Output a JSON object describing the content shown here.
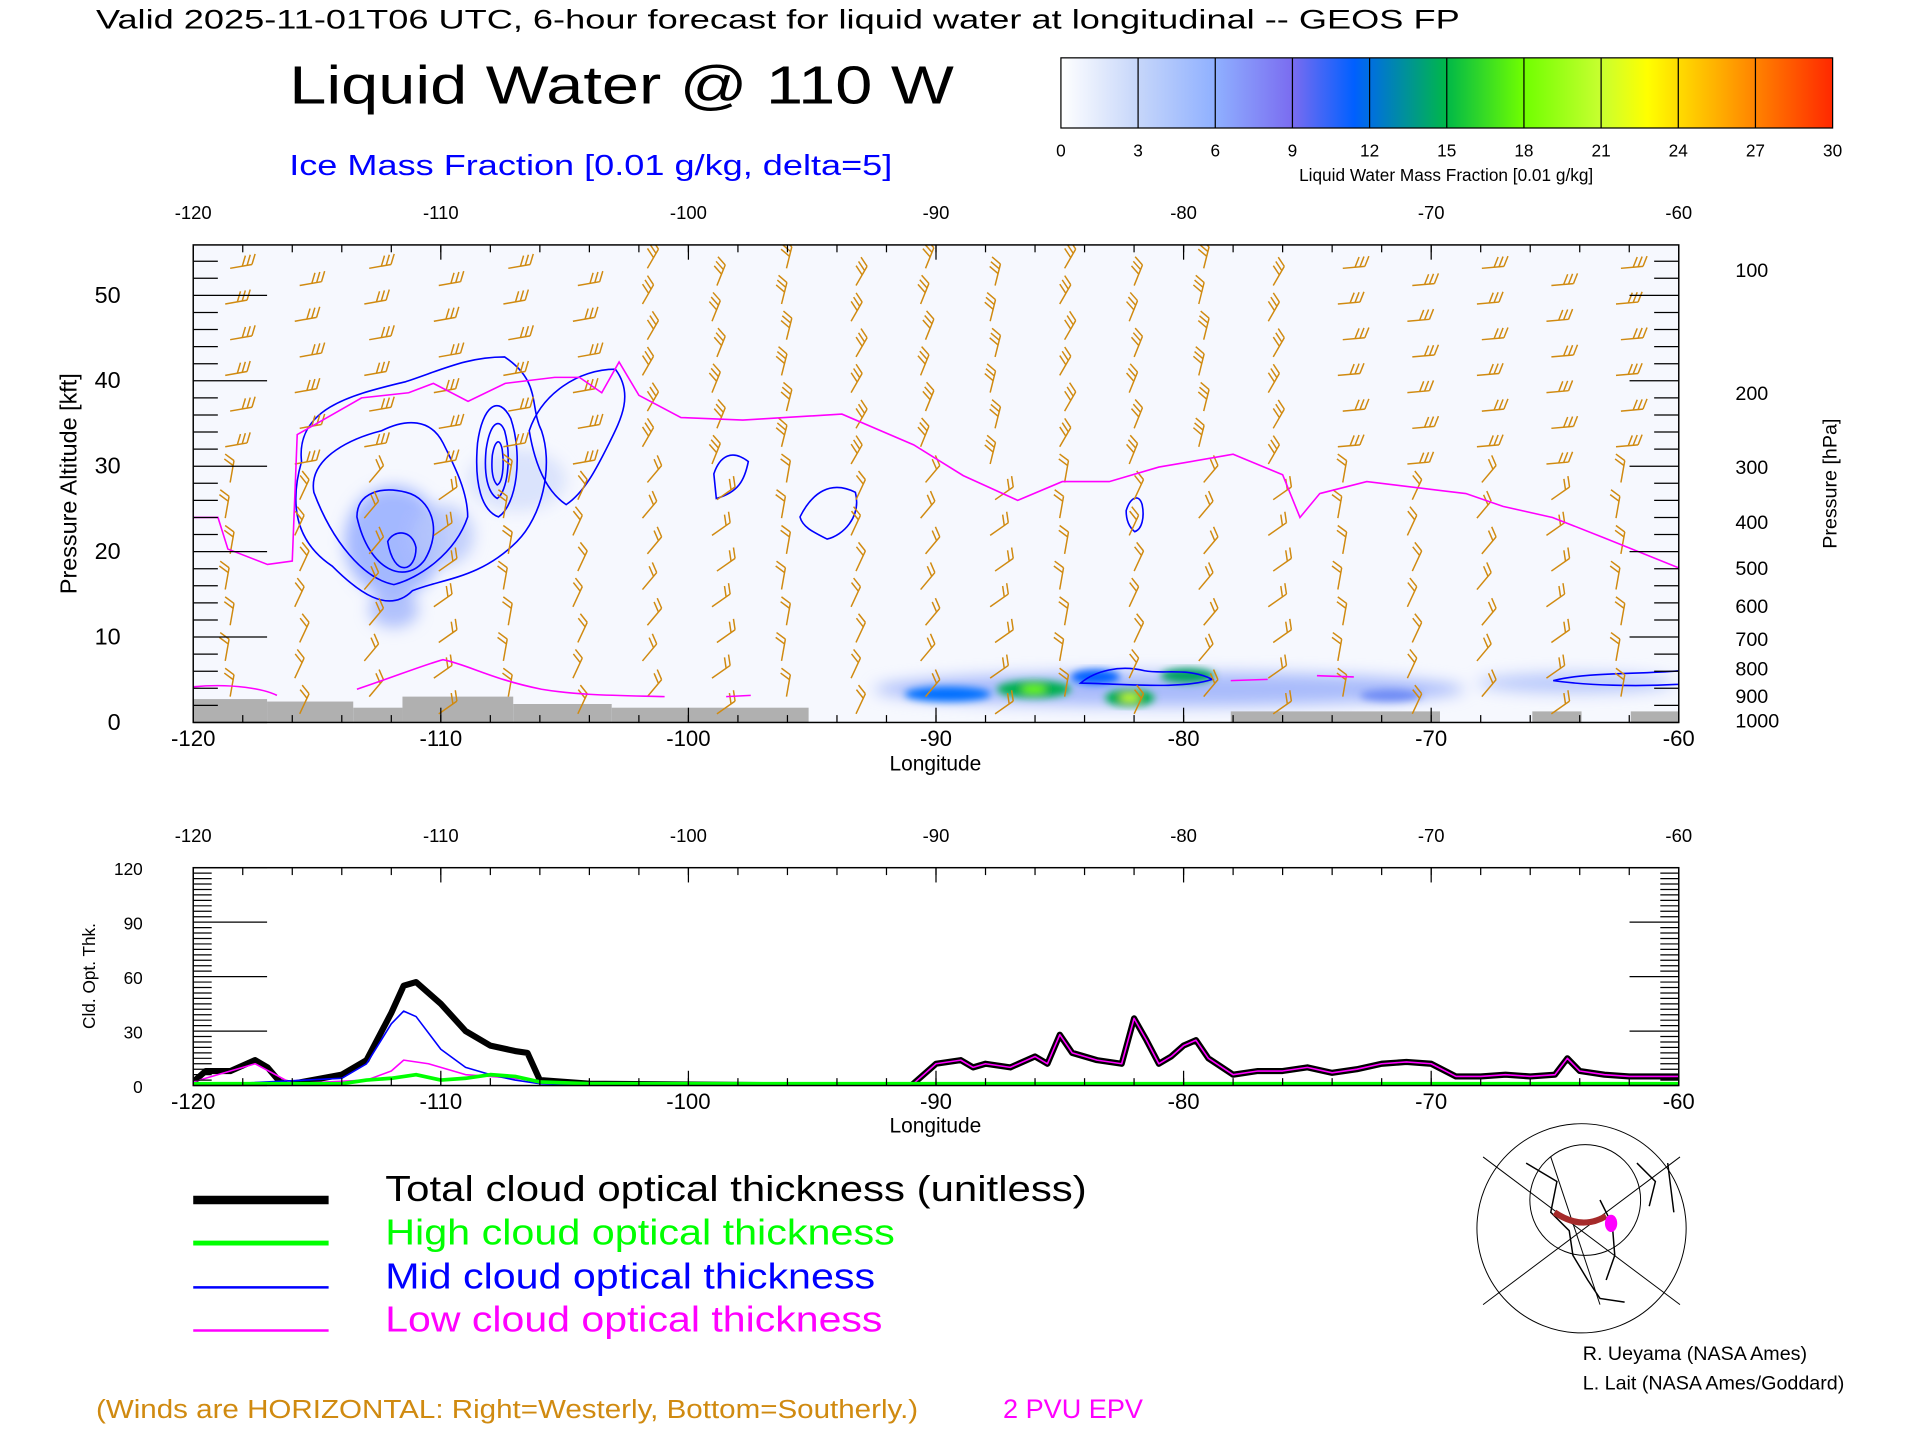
{
  "header": {
    "subtitle": "Valid 2025-11-01T06 UTC, 6-hour forecast for liquid water at longitudinal -- GEOS FP",
    "title": "Liquid Water @ 110 W",
    "ice_label": "Ice Mass Fraction [0.01 g/kg, delta=5]"
  },
  "colorbar": {
    "ticks": [
      "0",
      "3",
      "6",
      "9",
      "12",
      "15",
      "18",
      "21",
      "24",
      "27",
      "30"
    ],
    "label": "Liquid Water Mass Fraction [0.01 g/kg]",
    "colors": [
      "#ffffff",
      "#c6d6fa",
      "#8fb0ff",
      "#7a86f5",
      "#0060ff",
      "#00b050",
      "#70ff00",
      "#c8ff30",
      "#ffff00",
      "#ffaa00",
      "#ff3000"
    ]
  },
  "legend": {
    "total": "Total cloud optical thickness (unitless)",
    "high": "High cloud optical thickness",
    "mid": "Mid cloud optical thickness",
    "low": "Low cloud optical thickness"
  },
  "footer": {
    "winds_note": "(Winds are HORIZONTAL: Right=Westerly, Bottom=Southerly.)",
    "pvu": "2 PVU EPV",
    "credit1": "R. Ueyama (NASA Ames)",
    "credit2": "L. Lait (NASA Ames/Goddard)"
  },
  "chart_data": [
    {
      "type": "heatmap",
      "title": "Liquid Water @ 110 W",
      "xlabel": "Longitude",
      "ylabel": "Pressure Altitude [kft]",
      "y2label": "Pressure [hPa]",
      "xlim": [
        -120,
        -60
      ],
      "ylim": [
        0,
        56
      ],
      "xticks": [
        "-120",
        "-110",
        "-100",
        "-90",
        "-80",
        "-70",
        "-60"
      ],
      "yticks": [
        "0",
        "10",
        "20",
        "30",
        "40",
        "50"
      ],
      "y2ticks": [
        "100",
        "200",
        "300",
        "400",
        "500",
        "600",
        "700",
        "800",
        "900",
        "1000"
      ],
      "pvu_line": {
        "name": "2 PVU EPV",
        "lon": [
          -120,
          -119,
          -118.6,
          -117,
          -116,
          -115.8,
          -113.2,
          -111.3,
          -110.3,
          -108.9,
          -107.4,
          -105.4,
          -104.4,
          -103.5,
          -102.8,
          -102,
          -100.3,
          -97.8,
          -93.8,
          -90.9,
          -88.9,
          -86.7,
          -84.9,
          -83,
          -81,
          -78,
          -76,
          -75.3,
          -74.5,
          -72.6,
          -68.6,
          -67.1,
          -65.1,
          -63,
          -60
        ],
        "kft": [
          24,
          24,
          20.3,
          18.5,
          18.9,
          33.7,
          38,
          38.6,
          39.7,
          37.6,
          39.7,
          40.4,
          40.4,
          38.6,
          42.2,
          38.3,
          35.7,
          35.4,
          36.1,
          32.5,
          28.9,
          26,
          28.2,
          28.2,
          29.9,
          31.4,
          29,
          24,
          26.8,
          28.2,
          26.8,
          25.3,
          24,
          21.6,
          18.1
        ]
      },
      "liquid_water_maxima": [
        {
          "lon": -111.5,
          "kft": 20,
          "value": 6
        },
        {
          "lon": -86,
          "kft": 3.5,
          "value": 15
        },
        {
          "lon": -83.5,
          "kft": 5,
          "value": 12
        },
        {
          "lon": -82,
          "kft": 3,
          "value": 18
        },
        {
          "lon": -80,
          "kft": 5.5,
          "value": 14
        },
        {
          "lon": -89,
          "kft": 3,
          "value": 10
        }
      ]
    },
    {
      "type": "line",
      "xlabel": "Longitude",
      "ylabel": "Cld. Opt. Thk.",
      "xlim": [
        -120,
        -60
      ],
      "ylim": [
        0,
        120
      ],
      "xticks": [
        "-120",
        "-110",
        "-100",
        "-90",
        "-80",
        "-70",
        "-60"
      ],
      "yticks": [
        "0",
        "30",
        "60",
        "90",
        "120"
      ],
      "series": [
        {
          "name": "Total cloud optical thickness (unitless)",
          "color": "#000000",
          "lon": [
            -120,
            -119.5,
            -118.5,
            -117.5,
            -117,
            -116.5,
            -116,
            -114,
            -113,
            -112,
            -111.5,
            -111,
            -110,
            -109,
            -108,
            -107,
            -106.5,
            -106,
            -104,
            -95,
            -91,
            -90,
            -89,
            -88.5,
            -88,
            -87,
            -86,
            -85.5,
            -85,
            -84.5,
            -84,
            -83.5,
            -82.5,
            -82,
            -81.5,
            -81,
            -80.5,
            -80,
            -79.5,
            -79,
            -78,
            -77,
            -76,
            -75,
            -74,
            -73,
            -72,
            -71,
            -70,
            -69,
            -68,
            -67,
            -66,
            -65,
            -64.5,
            -64,
            -63,
            -62,
            -60
          ],
          "values": [
            2,
            8,
            8,
            14,
            10,
            2,
            1,
            6,
            14,
            40,
            55,
            57,
            45,
            30,
            22,
            19,
            18,
            3,
            1,
            0,
            0,
            12,
            14,
            10,
            12,
            10,
            16,
            12,
            28,
            18,
            16,
            14,
            12,
            37,
            25,
            12,
            16,
            22,
            25,
            15,
            6,
            8,
            8,
            10,
            7,
            9,
            12,
            13,
            12,
            5,
            5,
            6,
            5,
            6,
            15,
            8,
            6,
            5,
            5
          ]
        },
        {
          "name": "High cloud optical thickness",
          "color": "#00ff00",
          "lon": [
            -120,
            -114,
            -113,
            -112,
            -111,
            -110,
            -109,
            -108,
            -107,
            -106,
            -104,
            -60
          ],
          "values": [
            1,
            1,
            3,
            4,
            6,
            3,
            4,
            6,
            5,
            2,
            1,
            1
          ]
        },
        {
          "name": "Mid cloud optical thickness",
          "color": "#0000ff",
          "lon": [
            -120,
            -114,
            -113,
            -112,
            -111.5,
            -111,
            -110,
            -109,
            -108,
            -107,
            -106,
            -104,
            -60
          ],
          "values": [
            0,
            4,
            12,
            34,
            41,
            38,
            20,
            10,
            6,
            3,
            1,
            0,
            0
          ]
        },
        {
          "name": "Low cloud optical thickness",
          "color": "#ff00ff",
          "lon": [
            -120,
            -117.5,
            -116,
            -113,
            -112,
            -111.5,
            -110.5,
            -109,
            -108,
            -107,
            -105,
            -91,
            -90,
            -89,
            -88.5,
            -88,
            -87,
            -86,
            -85.5,
            -85,
            -84.5,
            -84,
            -83.5,
            -82.5,
            -82,
            -81.5,
            -81,
            -80.5,
            -80,
            -79.5,
            -79,
            -78,
            -77,
            -76,
            -75,
            -74,
            -73,
            -72,
            -71,
            -70,
            -69,
            -68,
            -67,
            -66,
            -65,
            -64.5,
            -64,
            -63,
            -62,
            -60
          ],
          "values": [
            2,
            12,
            1,
            3,
            8,
            14,
            12,
            6,
            5,
            4,
            1,
            0,
            12,
            14,
            10,
            12,
            10,
            16,
            12,
            28,
            18,
            16,
            14,
            12,
            37,
            25,
            12,
            16,
            22,
            25,
            15,
            6,
            8,
            8,
            10,
            7,
            9,
            12,
            13,
            12,
            5,
            5,
            6,
            5,
            6,
            15,
            8,
            6,
            5,
            5
          ]
        }
      ]
    }
  ]
}
